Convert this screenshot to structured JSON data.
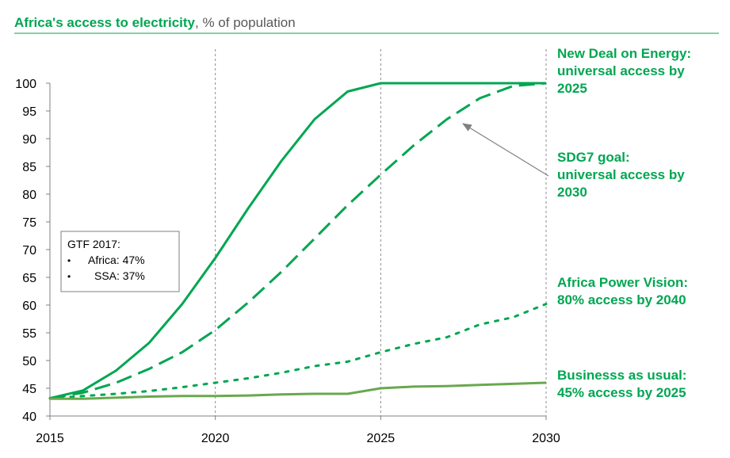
{
  "chart_data": {
    "type": "line",
    "title": "Africa's access to electricity",
    "subtitle": ", % of population",
    "xlabel": "",
    "ylabel": "",
    "xlim": [
      2015,
      2030
    ],
    "ylim": [
      40,
      100
    ],
    "x_ticks": [
      "2015",
      "2020",
      "2025",
      "2030"
    ],
    "y_ticks": [
      "40",
      "45",
      "50",
      "55",
      "60",
      "65",
      "70",
      "75",
      "80",
      "85",
      "90",
      "95",
      "100"
    ],
    "vertical_gridlines_at": [
      2020,
      2025,
      2030
    ],
    "series": [
      {
        "name": "New Deal on Energy",
        "style": "solid",
        "color": "#00a651",
        "x": [
          2015,
          2016,
          2017,
          2018,
          2019,
          2020,
          2021,
          2022,
          2023,
          2024,
          2025,
          2026,
          2027,
          2028,
          2029,
          2030
        ],
        "values": [
          43.2,
          44.6,
          48.2,
          53.2,
          60.2,
          68.5,
          77.5,
          86.0,
          93.5,
          98.5,
          100,
          100,
          100,
          100,
          100,
          100
        ]
      },
      {
        "name": "SDG7 goal",
        "style": "dashed",
        "color": "#00a651",
        "x": [
          2015,
          2016,
          2017,
          2018,
          2019,
          2020,
          2021,
          2022,
          2023,
          2024,
          2025,
          2026,
          2027,
          2028,
          2029,
          2030
        ],
        "values": [
          43.2,
          44.2,
          46.0,
          48.5,
          51.5,
          55.5,
          60.5,
          66.0,
          72.0,
          78.0,
          83.5,
          88.8,
          93.5,
          97.3,
          99.5,
          100
        ]
      },
      {
        "name": "Africa Power Vision",
        "style": "dotted",
        "color": "#00a651",
        "x": [
          2015,
          2016,
          2017,
          2018,
          2019,
          2020,
          2021,
          2022,
          2023,
          2024,
          2025,
          2026,
          2027,
          2028,
          2029,
          2030
        ],
        "values": [
          43.2,
          43.6,
          44.0,
          44.5,
          45.2,
          46.0,
          46.8,
          47.8,
          49.0,
          49.8,
          51.5,
          53.0,
          54.2,
          56.5,
          57.8,
          60.2
        ]
      },
      {
        "name": "Business as usual",
        "style": "solid",
        "color": "#6aa84f",
        "x": [
          2015,
          2016,
          2017,
          2018,
          2019,
          2020,
          2021,
          2022,
          2023,
          2024,
          2025,
          2026,
          2027,
          2028,
          2029,
          2030
        ],
        "values": [
          43.1,
          43.1,
          43.3,
          43.5,
          43.6,
          43.6,
          43.7,
          43.9,
          44.0,
          44.0,
          45.0,
          45.3,
          45.4,
          45.6,
          45.8,
          46.0
        ]
      }
    ],
    "annotations": [
      {
        "series": "New Deal on Energy",
        "lines": [
          "New Deal on Energy:",
          "universal access by",
          "2025"
        ]
      },
      {
        "series": "SDG7 goal",
        "lines": [
          "SDG7 goal:",
          "universal access by",
          "2030"
        ]
      },
      {
        "series": "Africa Power Vision",
        "lines": [
          "Africa Power Vision:",
          "80% access by 2040"
        ]
      },
      {
        "series": "Business as usual",
        "lines": [
          "Businesss as usual:",
          "45% access by 2025"
        ]
      }
    ],
    "legend_box": {
      "title": "GTF 2017:",
      "items": [
        "Africa: 47%",
        "SSA: 37%"
      ],
      "placement": "middle-left"
    }
  },
  "colors": {
    "accent": "#00a651",
    "bau": "#6aa84f",
    "axis": "#808080",
    "text": "#000000",
    "subtitle": "#595959",
    "arrow": "#808080"
  }
}
